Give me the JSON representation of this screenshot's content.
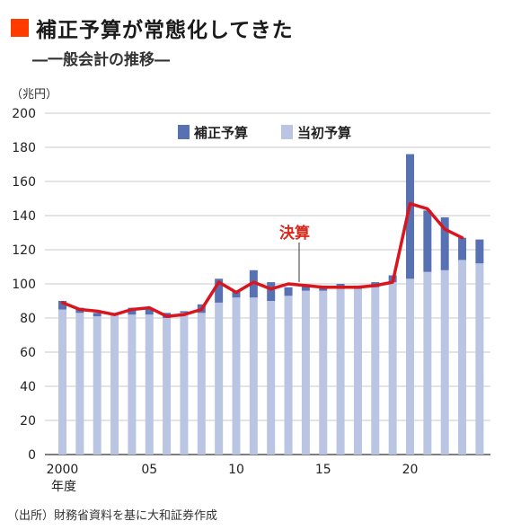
{
  "header": {
    "title": "補正予算が常態化してきた",
    "subtitle": "―一般会計の推移―"
  },
  "unit_label": "（兆円）",
  "source": "（出所）財務省資料を基に大和証券作成",
  "colors": {
    "title_mark": "#ff3b00",
    "initial_budget": "#b9c5e2",
    "supplementary_budget": "#5871b3",
    "settlement_line": "#d9151e",
    "grid": "#c8c8c8"
  },
  "chart_data": {
    "type": "bar",
    "stacked": true,
    "x": [
      2000,
      2001,
      2002,
      2003,
      2004,
      2005,
      2006,
      2007,
      2008,
      2009,
      2010,
      2011,
      2012,
      2013,
      2014,
      2015,
      2016,
      2017,
      2018,
      2019,
      2020,
      2021,
      2022,
      2023,
      2024
    ],
    "x_tick_labels": [
      {
        "x": 2000,
        "label": "2000"
      },
      {
        "x": 2005,
        "label": "05"
      },
      {
        "x": 2010,
        "label": "10"
      },
      {
        "x": 2015,
        "label": "15"
      },
      {
        "x": 2020,
        "label": "20"
      }
    ],
    "x_unit_label": "年度",
    "ylim": [
      0,
      200
    ],
    "y_ticks": [
      0,
      20,
      40,
      60,
      80,
      100,
      120,
      140,
      160,
      180,
      200
    ],
    "grid": true,
    "legend_position": "top",
    "series": [
      {
        "name": "当初予算",
        "color": "#b9c5e2",
        "values": [
          85,
          83,
          81,
          82,
          82,
          82,
          80,
          83,
          83,
          89,
          92,
          92,
          90,
          93,
          96,
          96,
          97,
          97,
          98,
          101,
          103,
          107,
          108,
          114,
          112
        ]
      },
      {
        "name": "補正予算",
        "color": "#5871b3",
        "values": [
          5,
          3,
          2,
          0,
          4,
          4,
          3,
          1,
          5,
          14,
          4,
          16,
          11,
          5,
          3,
          3,
          3,
          2,
          3,
          4,
          73,
          36,
          31,
          13,
          14
        ]
      }
    ],
    "settlement": {
      "label": "決算",
      "color": "#d9151e",
      "x": [
        2000,
        2001,
        2002,
        2003,
        2004,
        2005,
        2006,
        2007,
        2008,
        2009,
        2010,
        2011,
        2012,
        2013,
        2014,
        2015,
        2016,
        2017,
        2018,
        2019,
        2020,
        2021,
        2022,
        2023
      ],
      "values": [
        89,
        85,
        84,
        82,
        85,
        86,
        81,
        82,
        85,
        101,
        95,
        101,
        97,
        100,
        99,
        98,
        98,
        98,
        99,
        101,
        147,
        144,
        132,
        127
      ]
    }
  }
}
